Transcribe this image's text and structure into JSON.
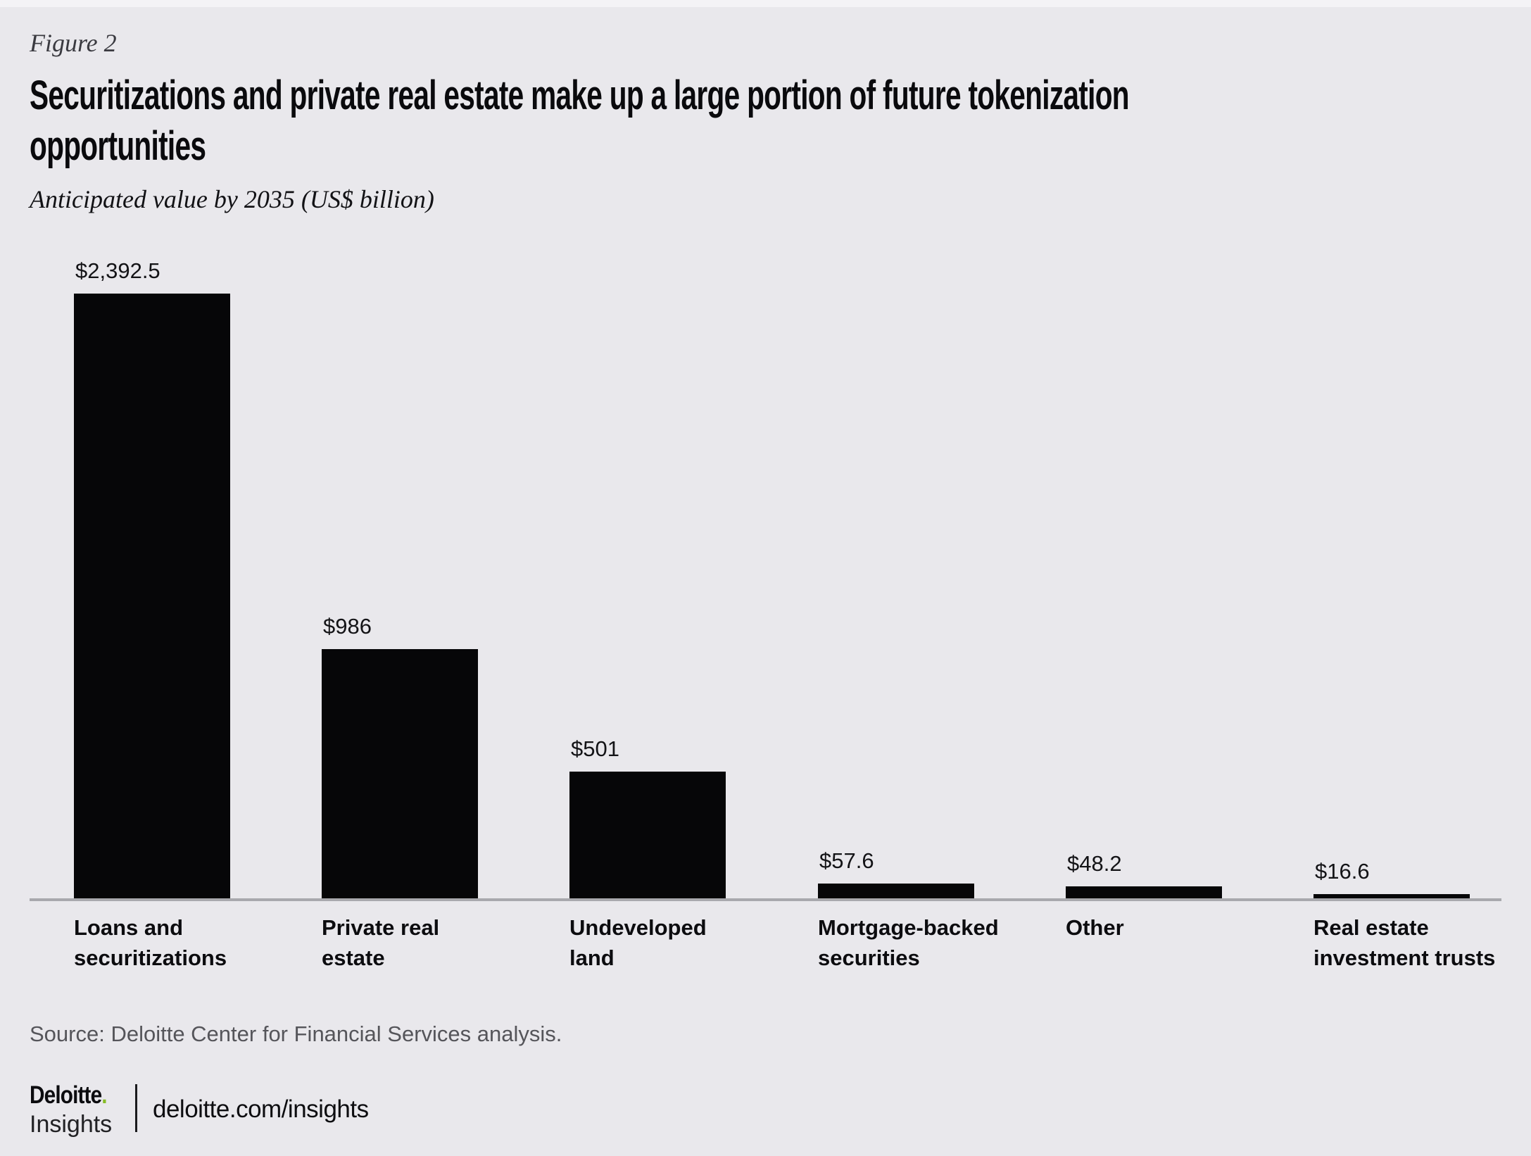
{
  "figure_label": "Figure 2",
  "title_lines": [
    "Securitizations and private real estate make up a large portion of future tokenization",
    "opportunities"
  ],
  "subtitle": "Anticipated value by 2035 (US$ billion)",
  "source": "Source: Deloitte Center for Financial Services analysis.",
  "footer": {
    "brand_name": "Deloitte",
    "brand_dot": ".",
    "brand_sub": "Insights",
    "link": "deloitte.com/insights"
  },
  "colors": {
    "background": "#e9e8ec",
    "bar": "#060608",
    "axis_line": "#a8a8ad",
    "accent_green": "#86bc25",
    "source_text": "#55555a"
  },
  "chart_data": {
    "type": "bar",
    "title": "Securitizations and private real estate make up a large portion of future tokenization opportunities",
    "subtitle": "Anticipated value by 2035 (US$ billion)",
    "categories": [
      "Loans and securitizations",
      "Private real estate",
      "Undeveloped land",
      "Mortgage-backed securities",
      "Other",
      "Real estate investment trusts"
    ],
    "values": [
      2392.5,
      986,
      501,
      57.6,
      48.2,
      16.6
    ],
    "value_labels": [
      "$2,392.5",
      "$986",
      "$501",
      "$57.6",
      "$48.2",
      "$16.6"
    ],
    "category_label_lines": [
      [
        "Loans and",
        "securitizations"
      ],
      [
        "Private real",
        "estate"
      ],
      [
        "Undeveloped",
        "land"
      ],
      [
        "Mortgage-backed",
        "securities"
      ],
      [
        "Other"
      ],
      [
        "Real estate",
        "investment trusts"
      ]
    ],
    "xlabel": "",
    "ylabel": "",
    "ylim": [
      0,
      2392.5
    ],
    "grid": false,
    "legend": false,
    "bar_color": "#060608",
    "value_labels_position": "above-bars, left-aligned",
    "category_labels_position": "below-axis, left-aligned"
  }
}
